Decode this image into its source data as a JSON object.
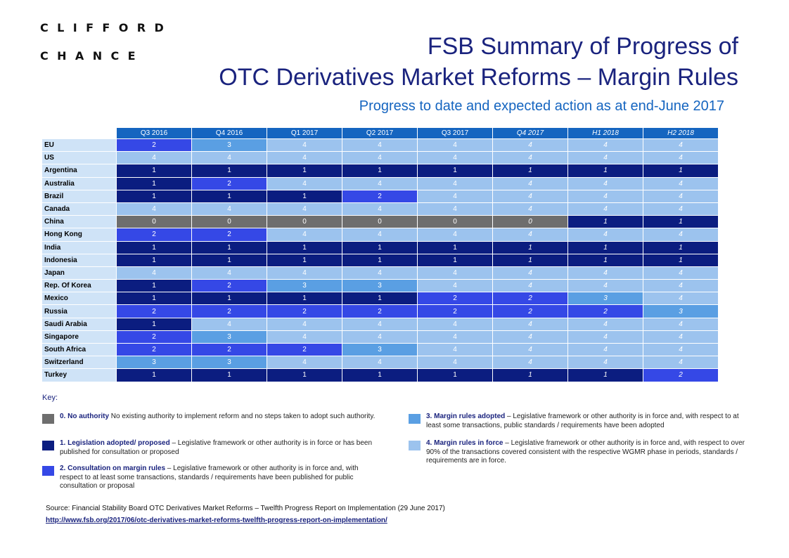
{
  "logo": {
    "line1": "CLIFFORD",
    "line2": "CHANCE"
  },
  "title": {
    "line1": "FSB Summary of Progress of",
    "line2": "OTC Derivatives  Market Reforms – Margin Rules",
    "subtitle": "Progress to date and expected action as at end-June 2017"
  },
  "table": {
    "columns": [
      "Q3 2016",
      "Q4 2016",
      "Q1 2017",
      "Q2 2017",
      "Q3 2017",
      "Q4 2017",
      "H1 2018",
      "H2 2018"
    ],
    "rows": [
      {
        "country": "EU",
        "values": [
          "2",
          "3",
          "4",
          "4",
          "4",
          "4",
          "4",
          "4"
        ]
      },
      {
        "country": "US",
        "values": [
          "4",
          "4",
          "4",
          "4",
          "4",
          "4",
          "4",
          "4"
        ]
      },
      {
        "country": "Argentina",
        "values": [
          "1",
          "1",
          "1",
          "1",
          "1",
          "1",
          "1",
          "1"
        ]
      },
      {
        "country": "Australia",
        "values": [
          "1",
          "2",
          "4",
          "4",
          "4",
          "4",
          "4",
          "4"
        ]
      },
      {
        "country": "Brazil",
        "values": [
          "1",
          "1",
          "1",
          "2",
          "4",
          "4",
          "4",
          "4"
        ]
      },
      {
        "country": "Canada",
        "values": [
          "4",
          "4",
          "4",
          "4",
          "4",
          "4",
          "4",
          "4"
        ]
      },
      {
        "country": "China",
        "values": [
          "0",
          "0",
          "0",
          "0",
          "0",
          "0",
          "1",
          "1"
        ]
      },
      {
        "country": "Hong Kong",
        "values": [
          "2",
          "2",
          "4",
          "4",
          "4",
          "4",
          "4",
          "4"
        ]
      },
      {
        "country": "India",
        "values": [
          "1",
          "1",
          "1",
          "1",
          "1",
          "1",
          "1",
          "1"
        ]
      },
      {
        "country": "Indonesia",
        "values": [
          "1",
          "1",
          "1",
          "1",
          "1",
          "1",
          "1",
          "1"
        ]
      },
      {
        "country": "Japan",
        "values": [
          "4",
          "4",
          "4",
          "4",
          "4",
          "4",
          "4",
          "4"
        ]
      },
      {
        "country": "Rep. Of Korea",
        "values": [
          "1",
          "2",
          "3",
          "3",
          "4",
          "4",
          "4",
          "4"
        ]
      },
      {
        "country": "Mexico",
        "values": [
          "1",
          "1",
          "1",
          "1",
          "2",
          "2",
          "3",
          "4"
        ]
      },
      {
        "country": "Russia",
        "values": [
          "2",
          "2",
          "2",
          "2",
          "2",
          "2",
          "2",
          "3"
        ]
      },
      {
        "country": "Saudi Arabia",
        "values": [
          "1",
          "4",
          "4",
          "4",
          "4",
          "4",
          "4",
          "4"
        ]
      },
      {
        "country": "Singapore",
        "values": [
          "2",
          "3",
          "4",
          "4",
          "4",
          "4",
          "4",
          "4"
        ]
      },
      {
        "country": "South Africa",
        "values": [
          "2",
          "2",
          "2",
          "3",
          "4",
          "4",
          "4",
          "4"
        ]
      },
      {
        "country": "Switzerland",
        "values": [
          "3",
          "3",
          "4",
          "4",
          "4",
          "4",
          "4",
          "4"
        ]
      },
      {
        "country": "Turkey",
        "values": [
          "1",
          "1",
          "1",
          "1",
          "1",
          "1",
          "1",
          "2"
        ]
      }
    ]
  },
  "colors": {
    "s0": "#6e6e6e",
    "s1": "#0b1d80",
    "s2": "#3548e6",
    "s3": "#5a9fe3",
    "s4": "#9cc3ee"
  },
  "key": {
    "label": "Key",
    "items": [
      {
        "bold": "0. No authority",
        "text": " No existing authority to implement reform and no steps taken to adopt such authority."
      },
      {
        "bold": "1. Legislation adopted/ proposed",
        "text": " – Legislative framework or other authority is in force or has been published for consultation or proposed"
      },
      {
        "bold": " 2. Consultation on margin rules",
        "text": " – Legislative framework or other authority is in force and, with respect to at least some transactions, standards / requirements have been published for public consultation or proposal"
      },
      {
        "bold": "3. Margin rules adopted",
        "text": " – Legislative framework or other authority is in force and, with respect to at least some transactions, public standards / requirements have been adopted"
      },
      {
        "bold": "4. Margin rules in force",
        "text": " – Legislative framework or other authority is in force and, with respect to over 90% of the transactions covered consistent with the respective WGMR phase in periods, standards / requirements are in force."
      }
    ]
  },
  "source": {
    "text": "Source: Financial Stability Board OTC Derivatives Market Reforms – Twelfth Progress Report on Implementation (29 June 2017) ",
    "link": "http://www.fsb.org/2017/06/otc-derivatives-market-reforms-twelfth-progress-report-on-implementation/"
  }
}
